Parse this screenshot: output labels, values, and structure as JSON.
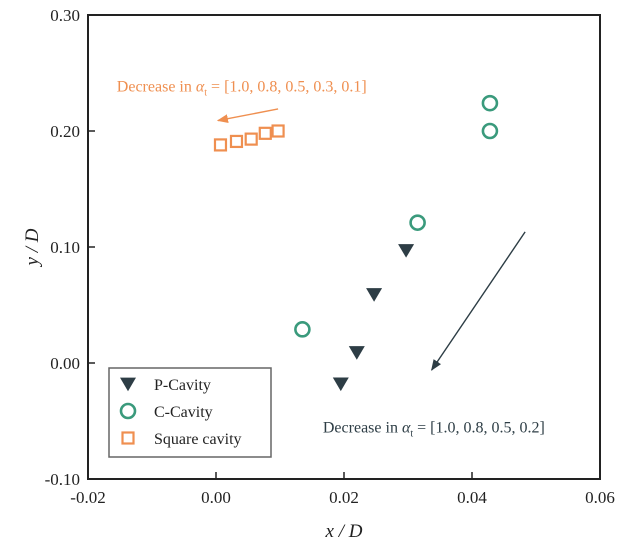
{
  "chart_data": {
    "type": "scatter",
    "xlabel": "x / D",
    "ylabel": "y / D",
    "xlim": [
      -0.02,
      0.06
    ],
    "ylim": [
      -0.1,
      0.3
    ],
    "x_ticks": [
      "-0.02",
      "0.00",
      "0.02",
      "0.04",
      "0.06"
    ],
    "y_ticks": [
      "-0.10",
      "0.00",
      "0.10",
      "0.20",
      "0.30"
    ],
    "legend_position": "bottom-left",
    "series": [
      {
        "name": "P-Cavity",
        "marker": "triangle-down",
        "color": "#2d3d45",
        "points": [
          [
            0.0195,
            -0.018
          ],
          [
            0.022,
            0.009
          ],
          [
            0.0247,
            0.059
          ],
          [
            0.0297,
            0.097
          ]
        ]
      },
      {
        "name": "C-Cavity",
        "marker": "circle-open",
        "color": "#3a9a7c",
        "points": [
          [
            0.0135,
            0.029
          ],
          [
            0.0315,
            0.121
          ],
          [
            0.0428,
            0.2
          ],
          [
            0.0428,
            0.224
          ]
        ]
      },
      {
        "name": "Square cavity",
        "marker": "square-open",
        "color": "#ef8f50",
        "points": [
          [
            0.0007,
            0.188
          ],
          [
            0.0032,
            0.191
          ],
          [
            0.0055,
            0.193
          ],
          [
            0.0077,
            0.198
          ],
          [
            0.0097,
            0.2
          ]
        ]
      }
    ],
    "annotations": [
      {
        "id": "square",
        "prefix": "Decrease in ",
        "symbol": "α",
        "subscript": "t",
        "suffix": " = [1.0, 0.8, 0.5, 0.3, 0.1]",
        "color": "#ef8f50",
        "text_at": [
          -0.0155,
          0.234
        ],
        "arrow_from": [
          0.0097,
          0.219
        ],
        "arrow_to": [
          0.0003,
          0.209
        ]
      },
      {
        "id": "cavity",
        "prefix": "Decrease in ",
        "symbol": "α",
        "subscript": "t",
        "suffix": " = [1.0, 0.8, 0.5, 0.2]",
        "color": "#2d3d45",
        "text_at": [
          0.0167,
          -0.06
        ],
        "arrow_from": [
          0.0483,
          0.113
        ],
        "arrow_to": [
          0.0337,
          -0.006
        ]
      }
    ]
  }
}
